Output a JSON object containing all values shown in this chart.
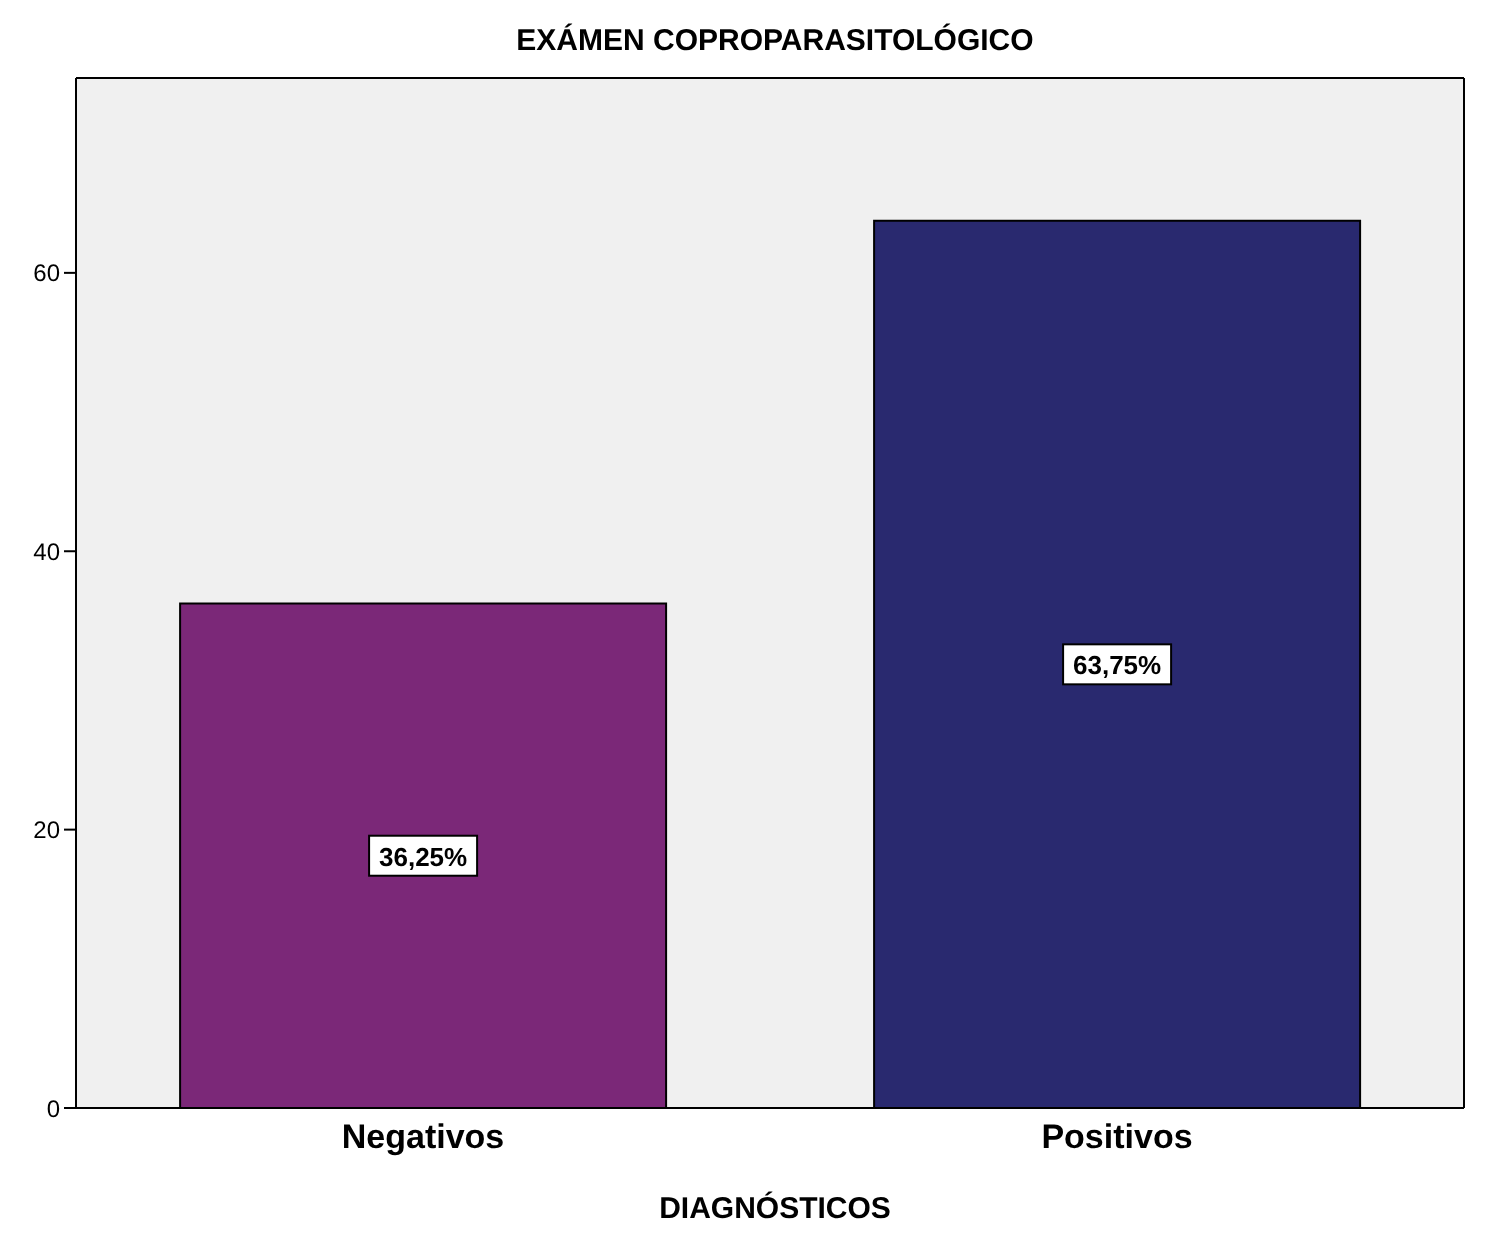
{
  "chart_data": {
    "type": "bar",
    "title": "EXÁMEN COPROPARASITOLÓGICO",
    "xlabel": "DIAGNÓSTICOS",
    "categories": [
      "Negativos",
      "Positivos"
    ],
    "values": [
      36.25,
      63.75
    ],
    "colors": [
      "#7b2878",
      "#29296f"
    ],
    "value_labels": [
      "36,25%",
      "63,75%"
    ],
    "ylim": [
      0,
      74
    ],
    "yticks": [
      0,
      20,
      40,
      60
    ],
    "grid": false
  }
}
